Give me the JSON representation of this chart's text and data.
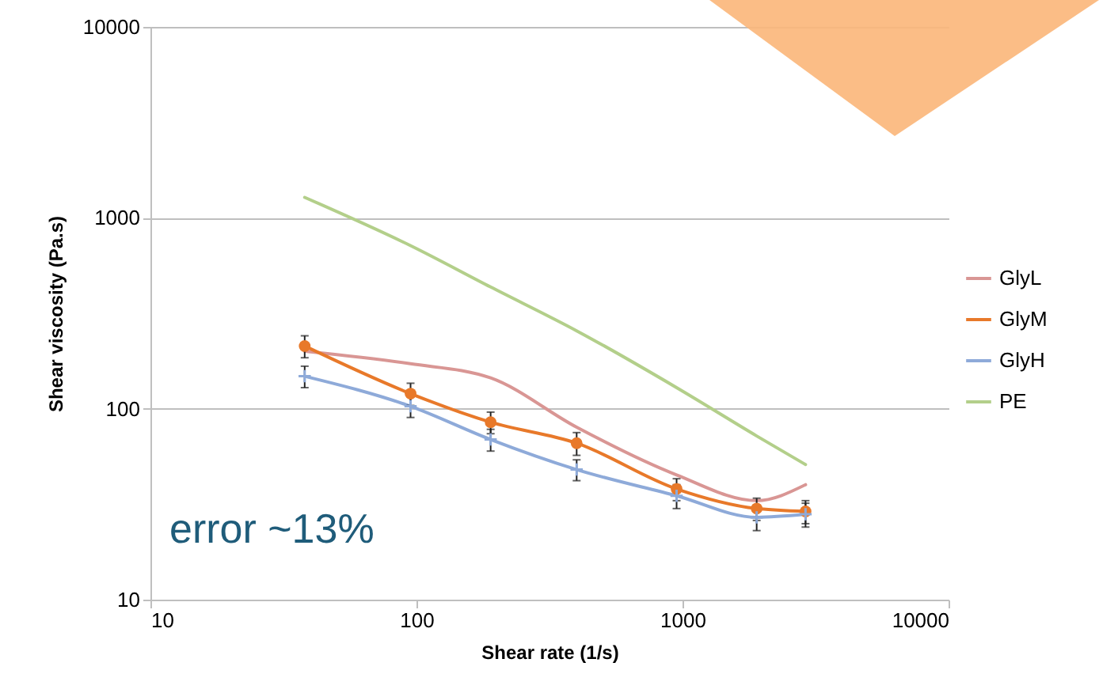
{
  "chart_data": {
    "type": "line",
    "xlabel": "Shear rate (1/s)",
    "ylabel": "Shear viscosity (Pa.s)",
    "x": [
      38,
      95,
      190,
      400,
      950,
      1900,
      2900
    ],
    "series": [
      {
        "name": "GlyL",
        "color": "#d99694",
        "marker": "none",
        "values": [
          200,
          172,
          145,
          80,
          45,
          33,
          40
        ]
      },
      {
        "name": "GlyM",
        "color": "#e8792a",
        "marker": "circle",
        "values": [
          213,
          120,
          85,
          66,
          38,
          30,
          29
        ],
        "errors": [
          28,
          16,
          11,
          9,
          5,
          4,
          4
        ]
      },
      {
        "name": "GlyH",
        "color": "#8eaad9",
        "marker": "cross",
        "values": [
          148,
          103,
          69,
          48,
          35,
          27,
          28
        ],
        "errors": [
          19,
          13,
          9,
          6,
          5,
          4,
          4
        ]
      },
      {
        "name": "PE",
        "color": "#b3cf8a",
        "marker": "none",
        "values": [
          1280,
          715,
          434,
          256,
          129,
          72,
          51
        ]
      }
    ],
    "log": "xy",
    "xlim": [
      10,
      10000
    ],
    "xticks": [
      10,
      100,
      1000,
      10000
    ],
    "ylim": [
      10,
      10000
    ],
    "yticks": [
      10,
      100,
      1000,
      10000
    ],
    "grid": "y",
    "legend": "right",
    "annotations": [
      "error ~13%"
    ]
  }
}
